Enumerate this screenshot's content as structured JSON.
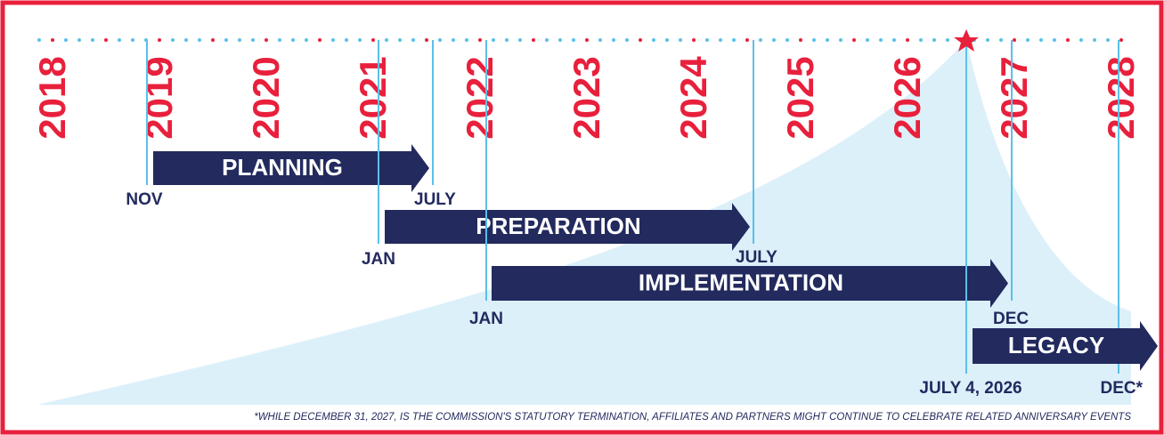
{
  "years": [
    "2018",
    "2019",
    "2020",
    "2021",
    "2022",
    "2023",
    "2024",
    "2025",
    "2026",
    "2027",
    "2028"
  ],
  "phases": [
    {
      "label": "PLANNING",
      "start": "NOV",
      "end": "JULY"
    },
    {
      "label": "PREPARATION",
      "start": "JAN",
      "end": "JULY"
    },
    {
      "label": "IMPLEMENTATION",
      "start": "JAN",
      "end": "DEC"
    },
    {
      "label": "LEGACY",
      "start": "JULY 4, 2026",
      "end": "DEC*"
    }
  ],
  "footnote": "*WHILE DECEMBER 31, 2027, IS THE COMMISSION'S STATUTORY TERMINATION, AFFILIATES AND PARTNERS MIGHT CONTINUE TO CELEBRATE RELATED ANNIVERSARY EVENTS"
}
